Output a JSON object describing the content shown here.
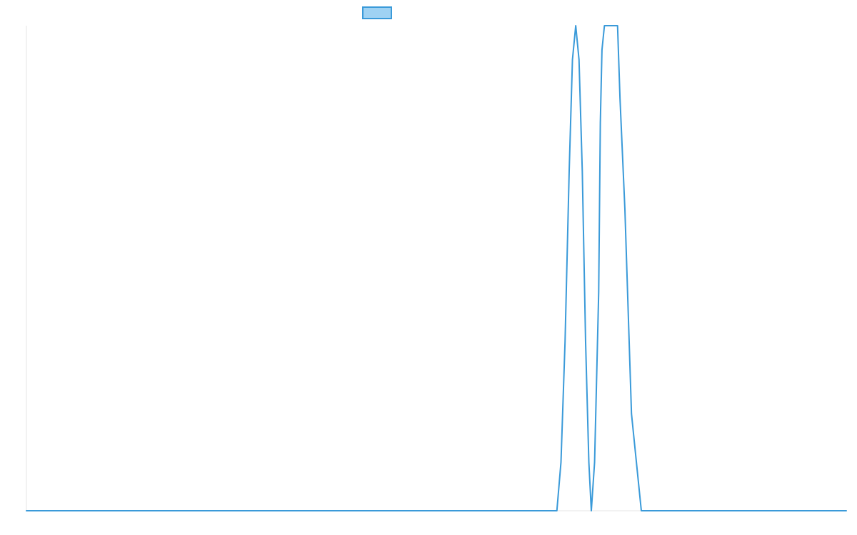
{
  "chart_data": {
    "type": "line",
    "title": "",
    "xlabel": "",
    "ylabel": "",
    "legend": {
      "position": "top-center",
      "entries": [
        {
          "name": "",
          "color": "#3a9ad9",
          "fill": "#9fd2f3"
        }
      ]
    },
    "grid": false,
    "xlim": [
      0,
      1000
    ],
    "ylim": [
      0,
      1
    ],
    "series": [
      {
        "name": "",
        "color": "#3a9ad9",
        "x": [
          0,
          647,
          652,
          657,
          662,
          666,
          670,
          674,
          678,
          682,
          686,
          689,
          693,
          698,
          700,
          702,
          705,
          710,
          715,
          719,
          721,
          724,
          730,
          738,
          750,
          758,
          764,
          767,
          771,
          777,
          1000
        ],
        "y": [
          0,
          0,
          0.1,
          0.35,
          0.7,
          0.93,
          1.0,
          0.93,
          0.7,
          0.35,
          0.1,
          0.0,
          0.1,
          0.45,
          0.8,
          0.95,
          1.0,
          1.0,
          1.0,
          1.0,
          1.0,
          0.85,
          0.62,
          0.2,
          0,
          0,
          0,
          0,
          0,
          0,
          0
        ]
      }
    ]
  }
}
